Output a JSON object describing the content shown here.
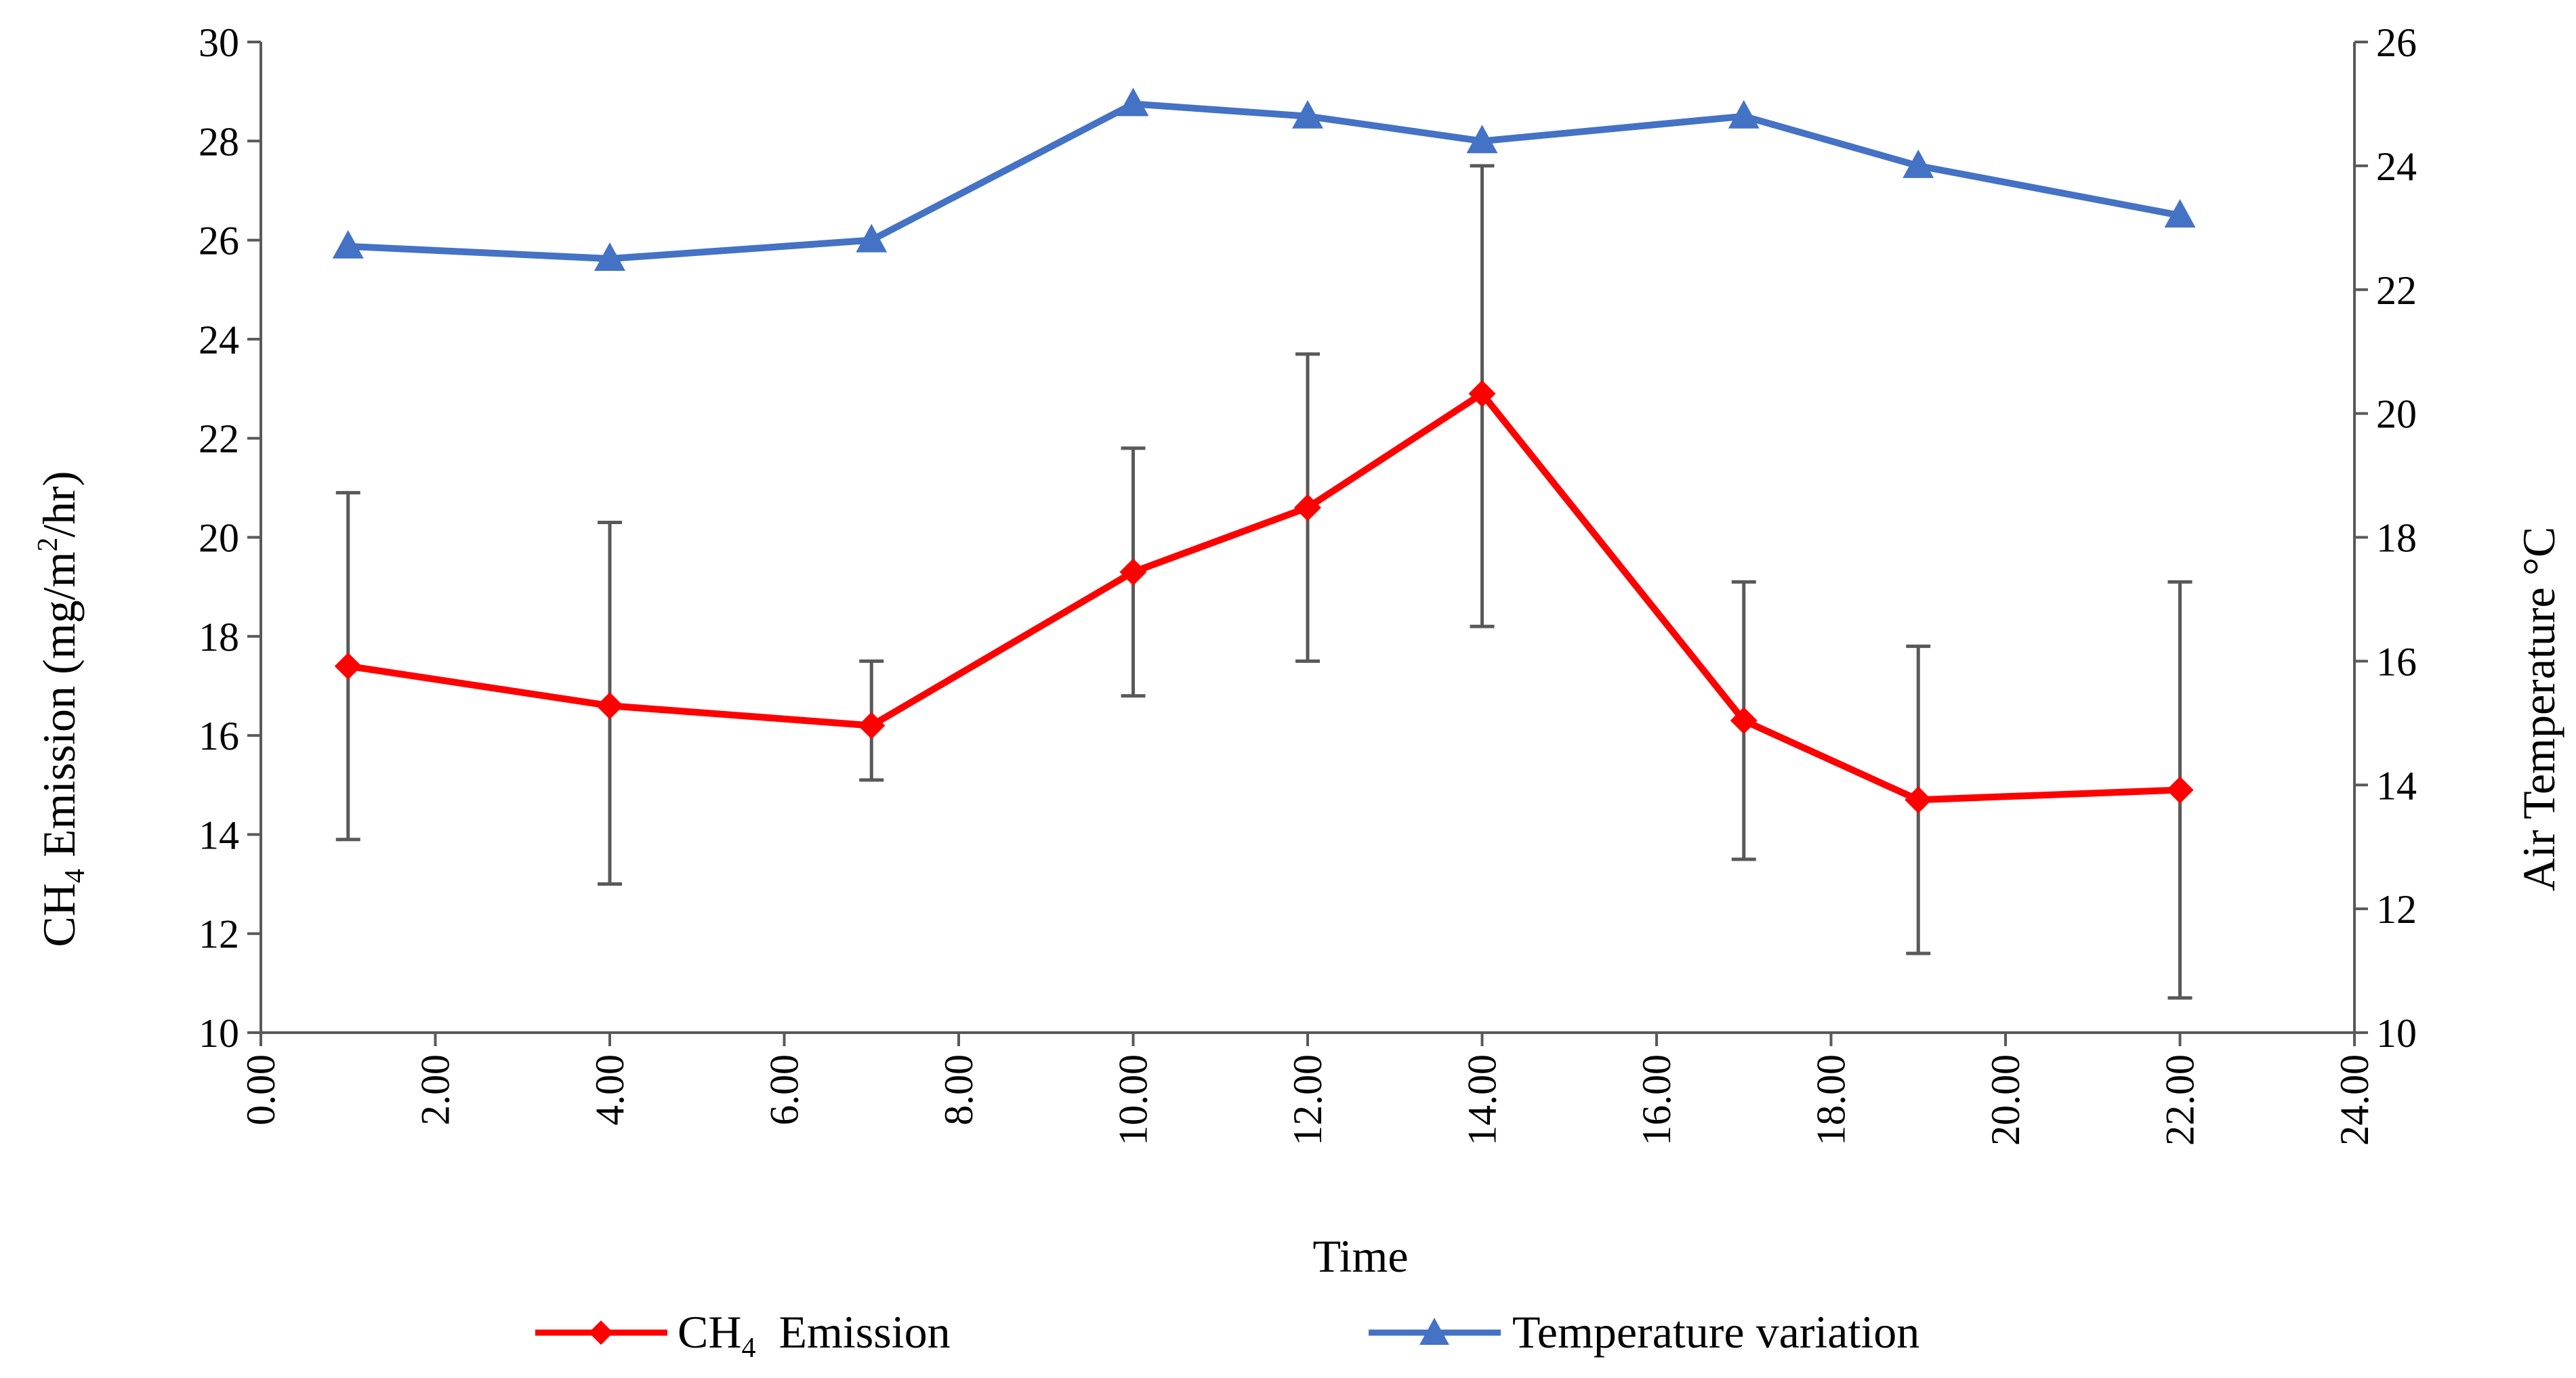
{
  "chart_data": {
    "type": "line",
    "xlabel": "Time",
    "ylabel": {
      "prefix": "CH",
      "sub": "4",
      "mid": " Emission (mg/m",
      "sup": "2",
      "suffix": "/hr)"
    },
    "y2label": "Air Temperature °C",
    "xlim": [
      0,
      24
    ],
    "ylim": [
      10,
      30
    ],
    "y2lim": [
      10,
      26
    ],
    "x_ticks": [
      0,
      2,
      4,
      6,
      8,
      10,
      12,
      14,
      16,
      18,
      20,
      22,
      24
    ],
    "x_tick_labels": [
      "0.00",
      "2.00",
      "4.00",
      "6.00",
      "8.00",
      "10.00",
      "12.00",
      "14.00",
      "16.00",
      "18.00",
      "20.00",
      "22.00",
      "24.00"
    ],
    "y_ticks": [
      10,
      12,
      14,
      16,
      18,
      20,
      22,
      24,
      26,
      28,
      30
    ],
    "y2_ticks": [
      10,
      12,
      14,
      16,
      18,
      20,
      22,
      24,
      26
    ],
    "grid": false,
    "legend_position": "bottom",
    "series": [
      {
        "name": {
          "prefix": "CH",
          "sub": "4",
          "suffix": "  Emission"
        },
        "axis": "left",
        "color": "#ff0000",
        "marker": "diamond",
        "x": [
          1,
          4,
          7,
          10,
          12,
          14,
          17,
          19,
          22
        ],
        "values": [
          17.4,
          16.6,
          16.2,
          19.3,
          20.6,
          22.9,
          16.3,
          14.7,
          14.9
        ],
        "error_low": [
          13.9,
          13.0,
          15.1,
          16.8,
          17.5,
          18.2,
          13.5,
          11.6,
          10.7
        ],
        "error_high": [
          20.9,
          20.3,
          17.5,
          21.8,
          23.7,
          27.5,
          19.1,
          17.8,
          19.1
        ],
        "error_color": "#595959"
      },
      {
        "name": "Temperature variation",
        "axis": "right",
        "color": "#4472c4",
        "marker": "triangle",
        "x": [
          1,
          4,
          7,
          10,
          12,
          14,
          17,
          19,
          22
        ],
        "values": [
          22.7,
          22.5,
          22.8,
          25.0,
          24.8,
          24.4,
          24.8,
          24.0,
          23.2
        ]
      }
    ]
  }
}
